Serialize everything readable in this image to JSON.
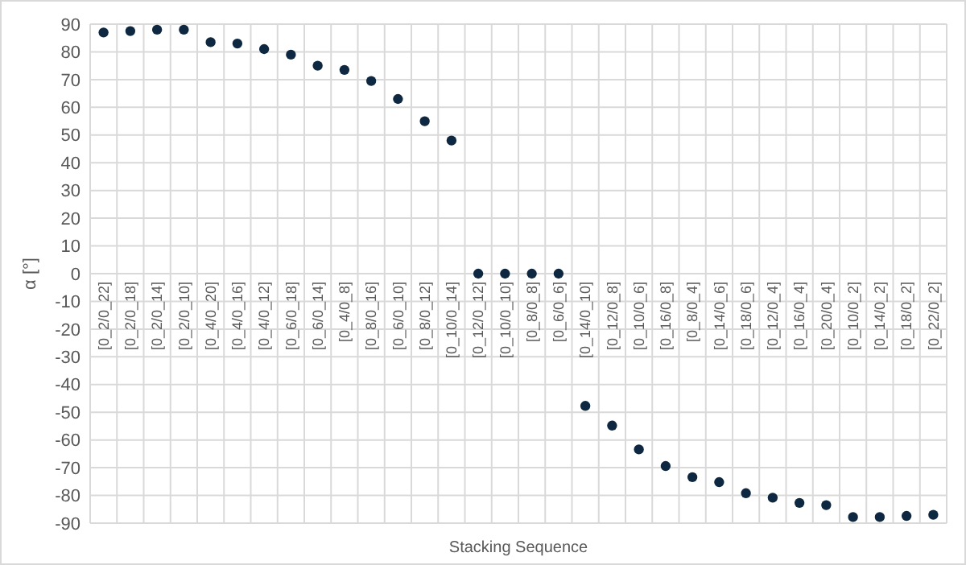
{
  "chart_data": {
    "type": "scatter",
    "xlabel": "Stacking Sequence",
    "ylabel": "α [°]",
    "categories": [
      "[0_2/0_22]",
      "[0_2/0_18]",
      "[0_2/0_14]",
      "[0_2/0_10]",
      "[0_4/0_20]",
      "[0_4/0_16]",
      "[0_4/0_12]",
      "[0_6/0_18]",
      "[0_6/0_14]",
      "[0_4/0_8]",
      "[0_8/0_16]",
      "[0_6/0_10]",
      "[0_8/0_12]",
      "[0_10/0_14]",
      "[0_12/0_12]",
      "[0_10/0_10]",
      "[0_8/0_8]",
      "[0_6/0_6]",
      "[0_14/0_10]",
      "[0_12/0_8]",
      "[0_10/0_6]",
      "[0_16/0_8]",
      "[0_8/0_4]",
      "[0_14/0_6]",
      "[0_18/0_6]",
      "[0_12/0_4]",
      "[0_16/0_4]",
      "[0_20/0_4]",
      "[0_10/0_2]",
      "[0_14/0_2]",
      "[0_18/0_2]",
      "[0_22/0_2]"
    ],
    "series": [
      {
        "color": "#0e2841",
        "values": [
          87,
          87.5,
          88,
          88,
          83.5,
          83,
          81,
          79,
          75,
          73.5,
          69.5,
          63,
          55,
          48,
          0,
          0,
          0,
          0,
          -47.7,
          -54.8,
          -63.4,
          -69.4,
          -73.4,
          -75.2,
          -79.2,
          -80.8,
          -82.7,
          -83.5,
          -87.8,
          -87.8,
          -87.4,
          -87
        ]
      }
    ],
    "ylim": [
      -90,
      90
    ],
    "yticks": [
      -90,
      -80,
      -70,
      -60,
      -50,
      -40,
      -30,
      -20,
      -10,
      0,
      10,
      20,
      30,
      40,
      50,
      60,
      70,
      80,
      90
    ],
    "grid": true,
    "marker": "circle"
  }
}
